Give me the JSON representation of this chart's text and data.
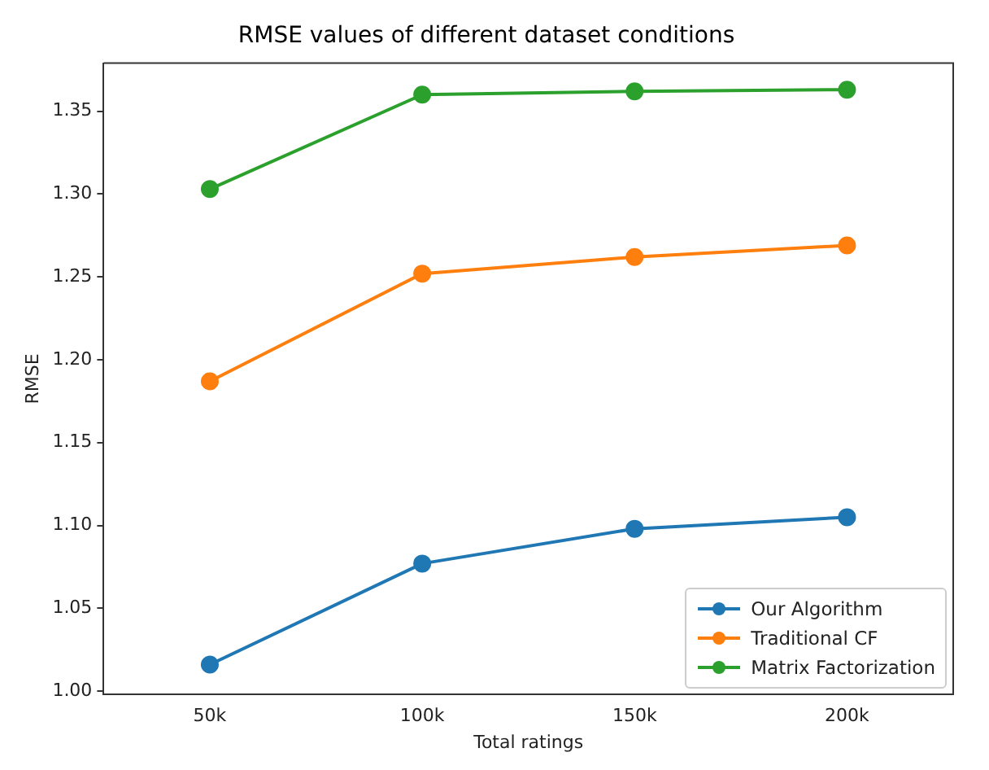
{
  "chart_data": {
    "type": "line",
    "title": "RMSE values of different dataset conditions",
    "xlabel": "Total ratings",
    "ylabel": "RMSE",
    "categories": [
      "50k",
      "100k",
      "150k",
      "200k"
    ],
    "series": [
      {
        "name": "Our Algorithm",
        "color": "#1f77b4",
        "values": [
          1.016,
          1.077,
          1.098,
          1.105
        ]
      },
      {
        "name": "Traditional CF",
        "color": "#ff7f0e",
        "values": [
          1.187,
          1.252,
          1.262,
          1.269
        ]
      },
      {
        "name": "Matrix Factorization",
        "color": "#2ca02c",
        "values": [
          1.303,
          1.36,
          1.362,
          1.363
        ]
      }
    ],
    "ylim": [
      0.998,
      1.379
    ],
    "yticks": [
      {
        "value": 1,
        "label": "1.00"
      },
      1.05,
      {
        "value": 1.1,
        "label": "1.10"
      },
      1.15,
      {
        "value": 1.2,
        "label": "1.20"
      },
      1.25,
      {
        "value": 1.3,
        "label": "1.30"
      },
      1.35
    ],
    "grid": false,
    "legend": "bottom right",
    "marker": "circle",
    "line_style": "solid"
  }
}
